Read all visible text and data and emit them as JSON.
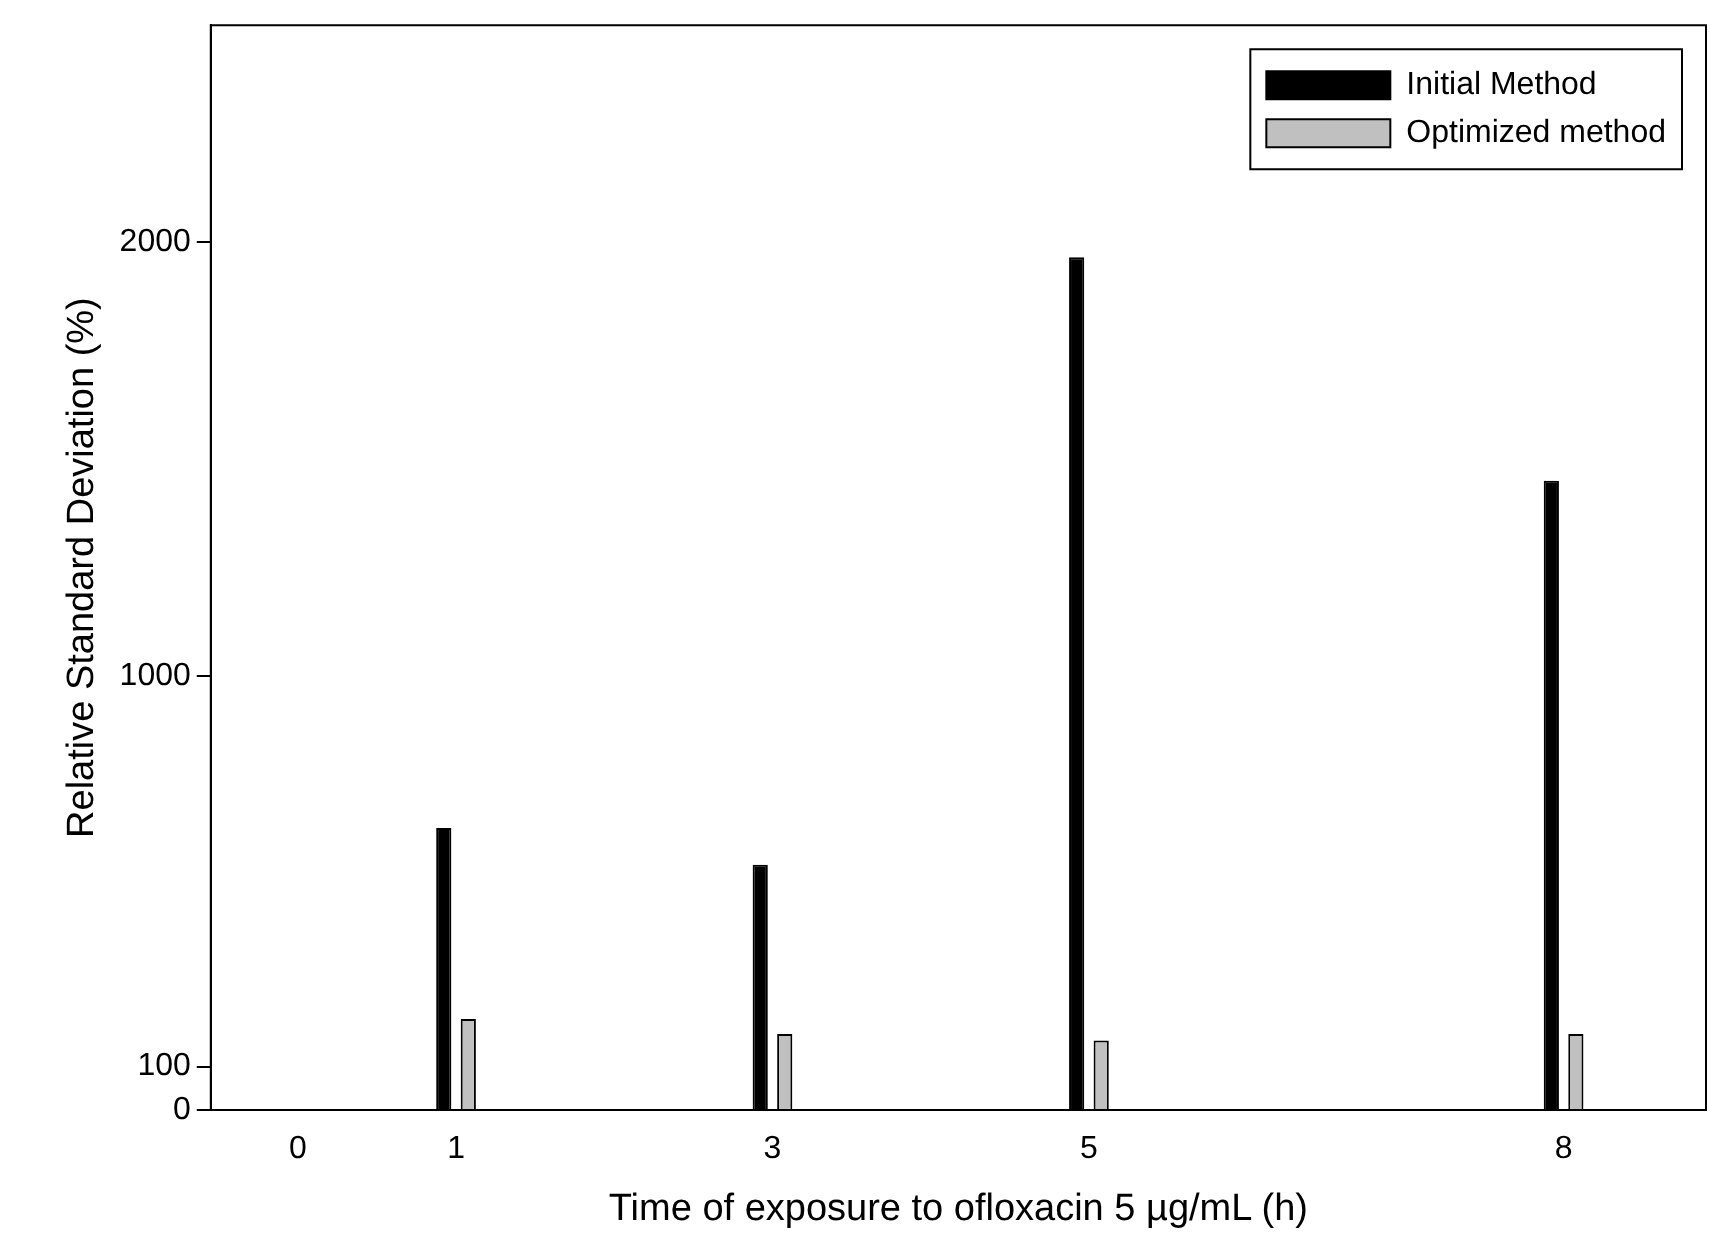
{
  "chart_data": {
    "type": "bar",
    "xlabel": "Time of exposure to ofloxacin 5 µg/mL (h)",
    "ylabel": "Relative Standard Deviation (%)",
    "x": [
      1,
      3,
      5,
      8
    ],
    "series": [
      {
        "name": "Initial Method",
        "color": "#000000",
        "values": [
          650,
          565,
          1965,
          1450
        ]
      },
      {
        "name": "Optimized method",
        "color": "#c0c0c0",
        "values": [
          210,
          175,
          160,
          175
        ]
      }
    ],
    "xlim": [
      -0.55,
      8.9
    ],
    "xticks": [
      0,
      1,
      3,
      5,
      8
    ],
    "ylim": [
      0,
      2500
    ],
    "yticks": [
      0,
      100,
      1000,
      2000
    ],
    "legend": "top right"
  }
}
